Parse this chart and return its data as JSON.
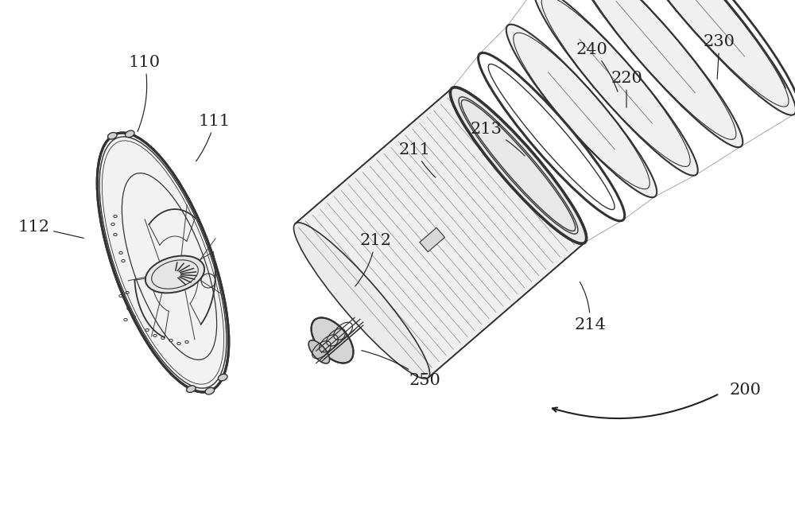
{
  "bg_color": "#ffffff",
  "line_color": "#333333",
  "label_color": "#222222",
  "fig_width": 10.0,
  "fig_height": 6.4,
  "dpi": 100
}
